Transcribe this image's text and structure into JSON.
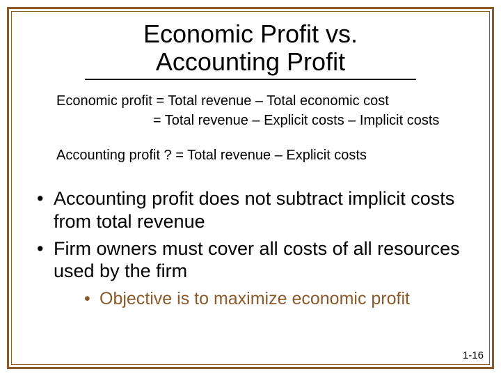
{
  "colors": {
    "frame": "#8b5a2b",
    "accent": "#8b5a2b",
    "text": "#000000",
    "background": "#ffffff"
  },
  "title": {
    "line1": "Economic Profit vs.",
    "line2": "Accounting Profit",
    "fontsize": 36
  },
  "formulas": {
    "line1": "Economic profit = Total revenue – Total economic cost",
    "line2_indent": "                         = Total revenue – Explicit costs – Implicit costs",
    "line3": "Accounting profit ? = Total revenue – Explicit costs",
    "fontsize": 20
  },
  "bullets": {
    "level1": [
      "Accounting profit does not subtract implicit costs from total revenue",
      "Firm owners must cover all costs of all resources used by the firm"
    ],
    "level2": [
      "Objective is to maximize economic profit"
    ],
    "fontsize_l1": 27,
    "fontsize_l2": 25
  },
  "footer": {
    "page": "1-16",
    "fontsize": 15
  }
}
